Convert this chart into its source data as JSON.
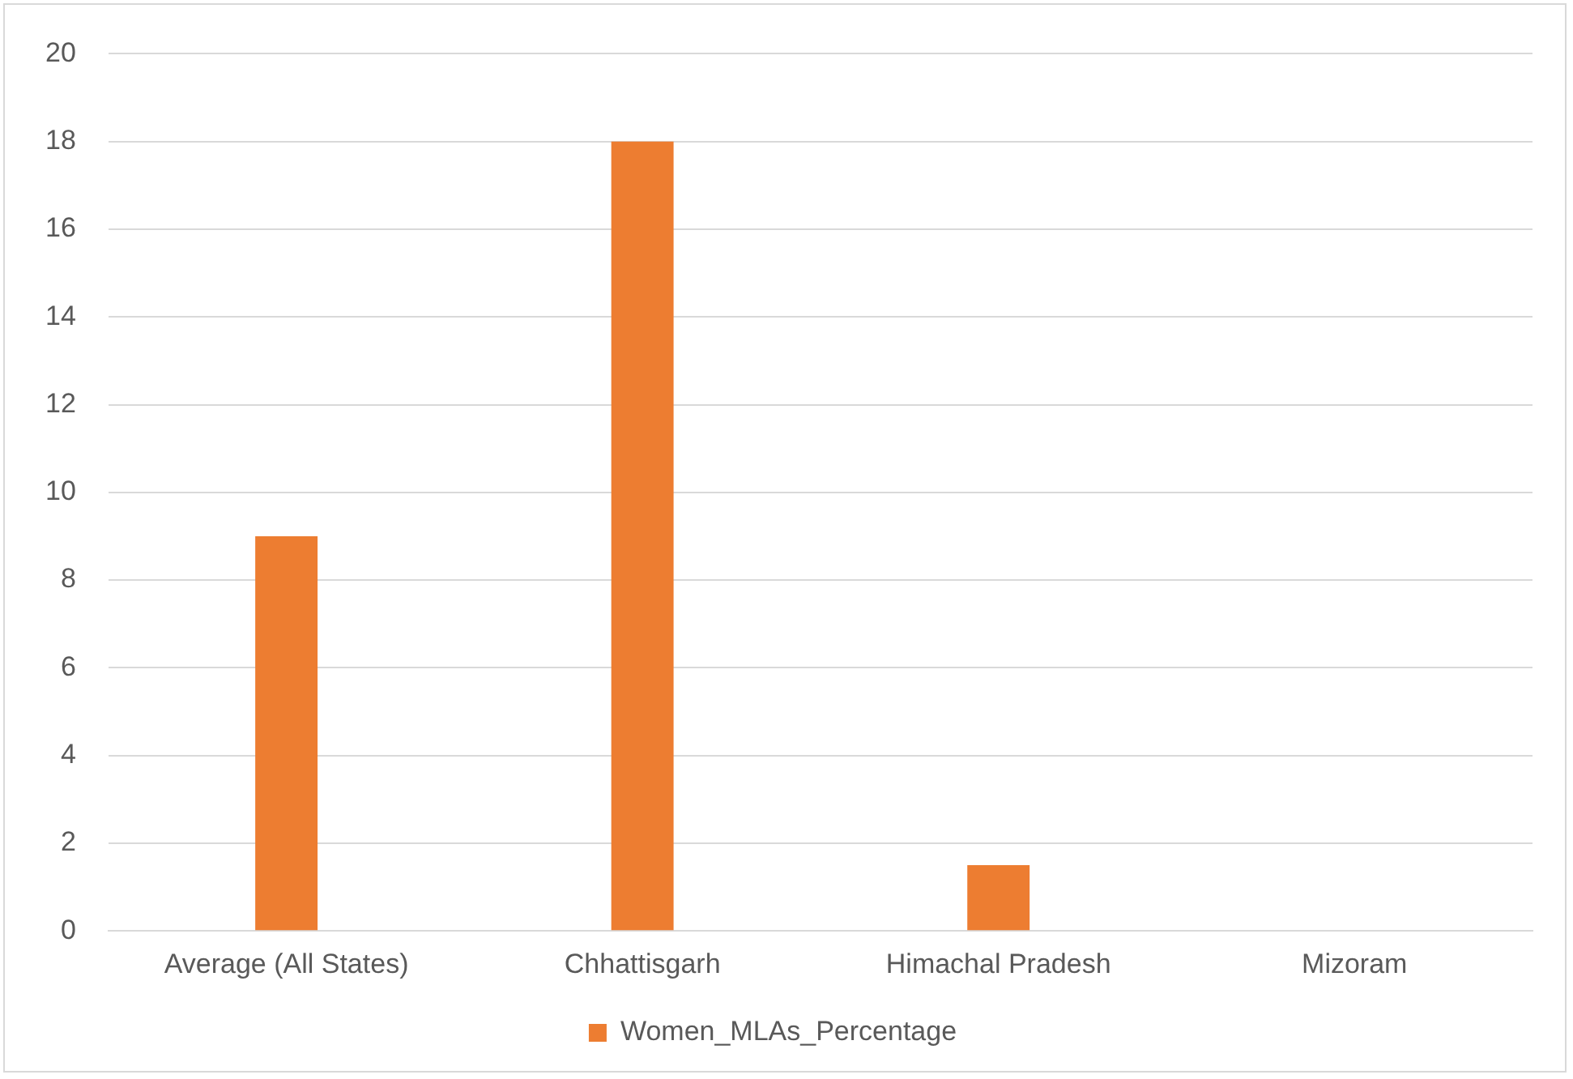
{
  "chart_data": {
    "type": "bar",
    "categories": [
      "Average (All States)",
      "Chhattisgarh",
      "Himachal Pradesh",
      "Mizoram"
    ],
    "series": [
      {
        "name": "Women_MLAs_Percentage",
        "color": "#ed7d31",
        "values": [
          9,
          18,
          1.5,
          0
        ]
      }
    ],
    "ylim": [
      0,
      20
    ],
    "yticks": [
      0,
      2,
      4,
      6,
      8,
      10,
      12,
      14,
      16,
      18,
      20
    ],
    "grid": "y",
    "legend": "bottom"
  }
}
